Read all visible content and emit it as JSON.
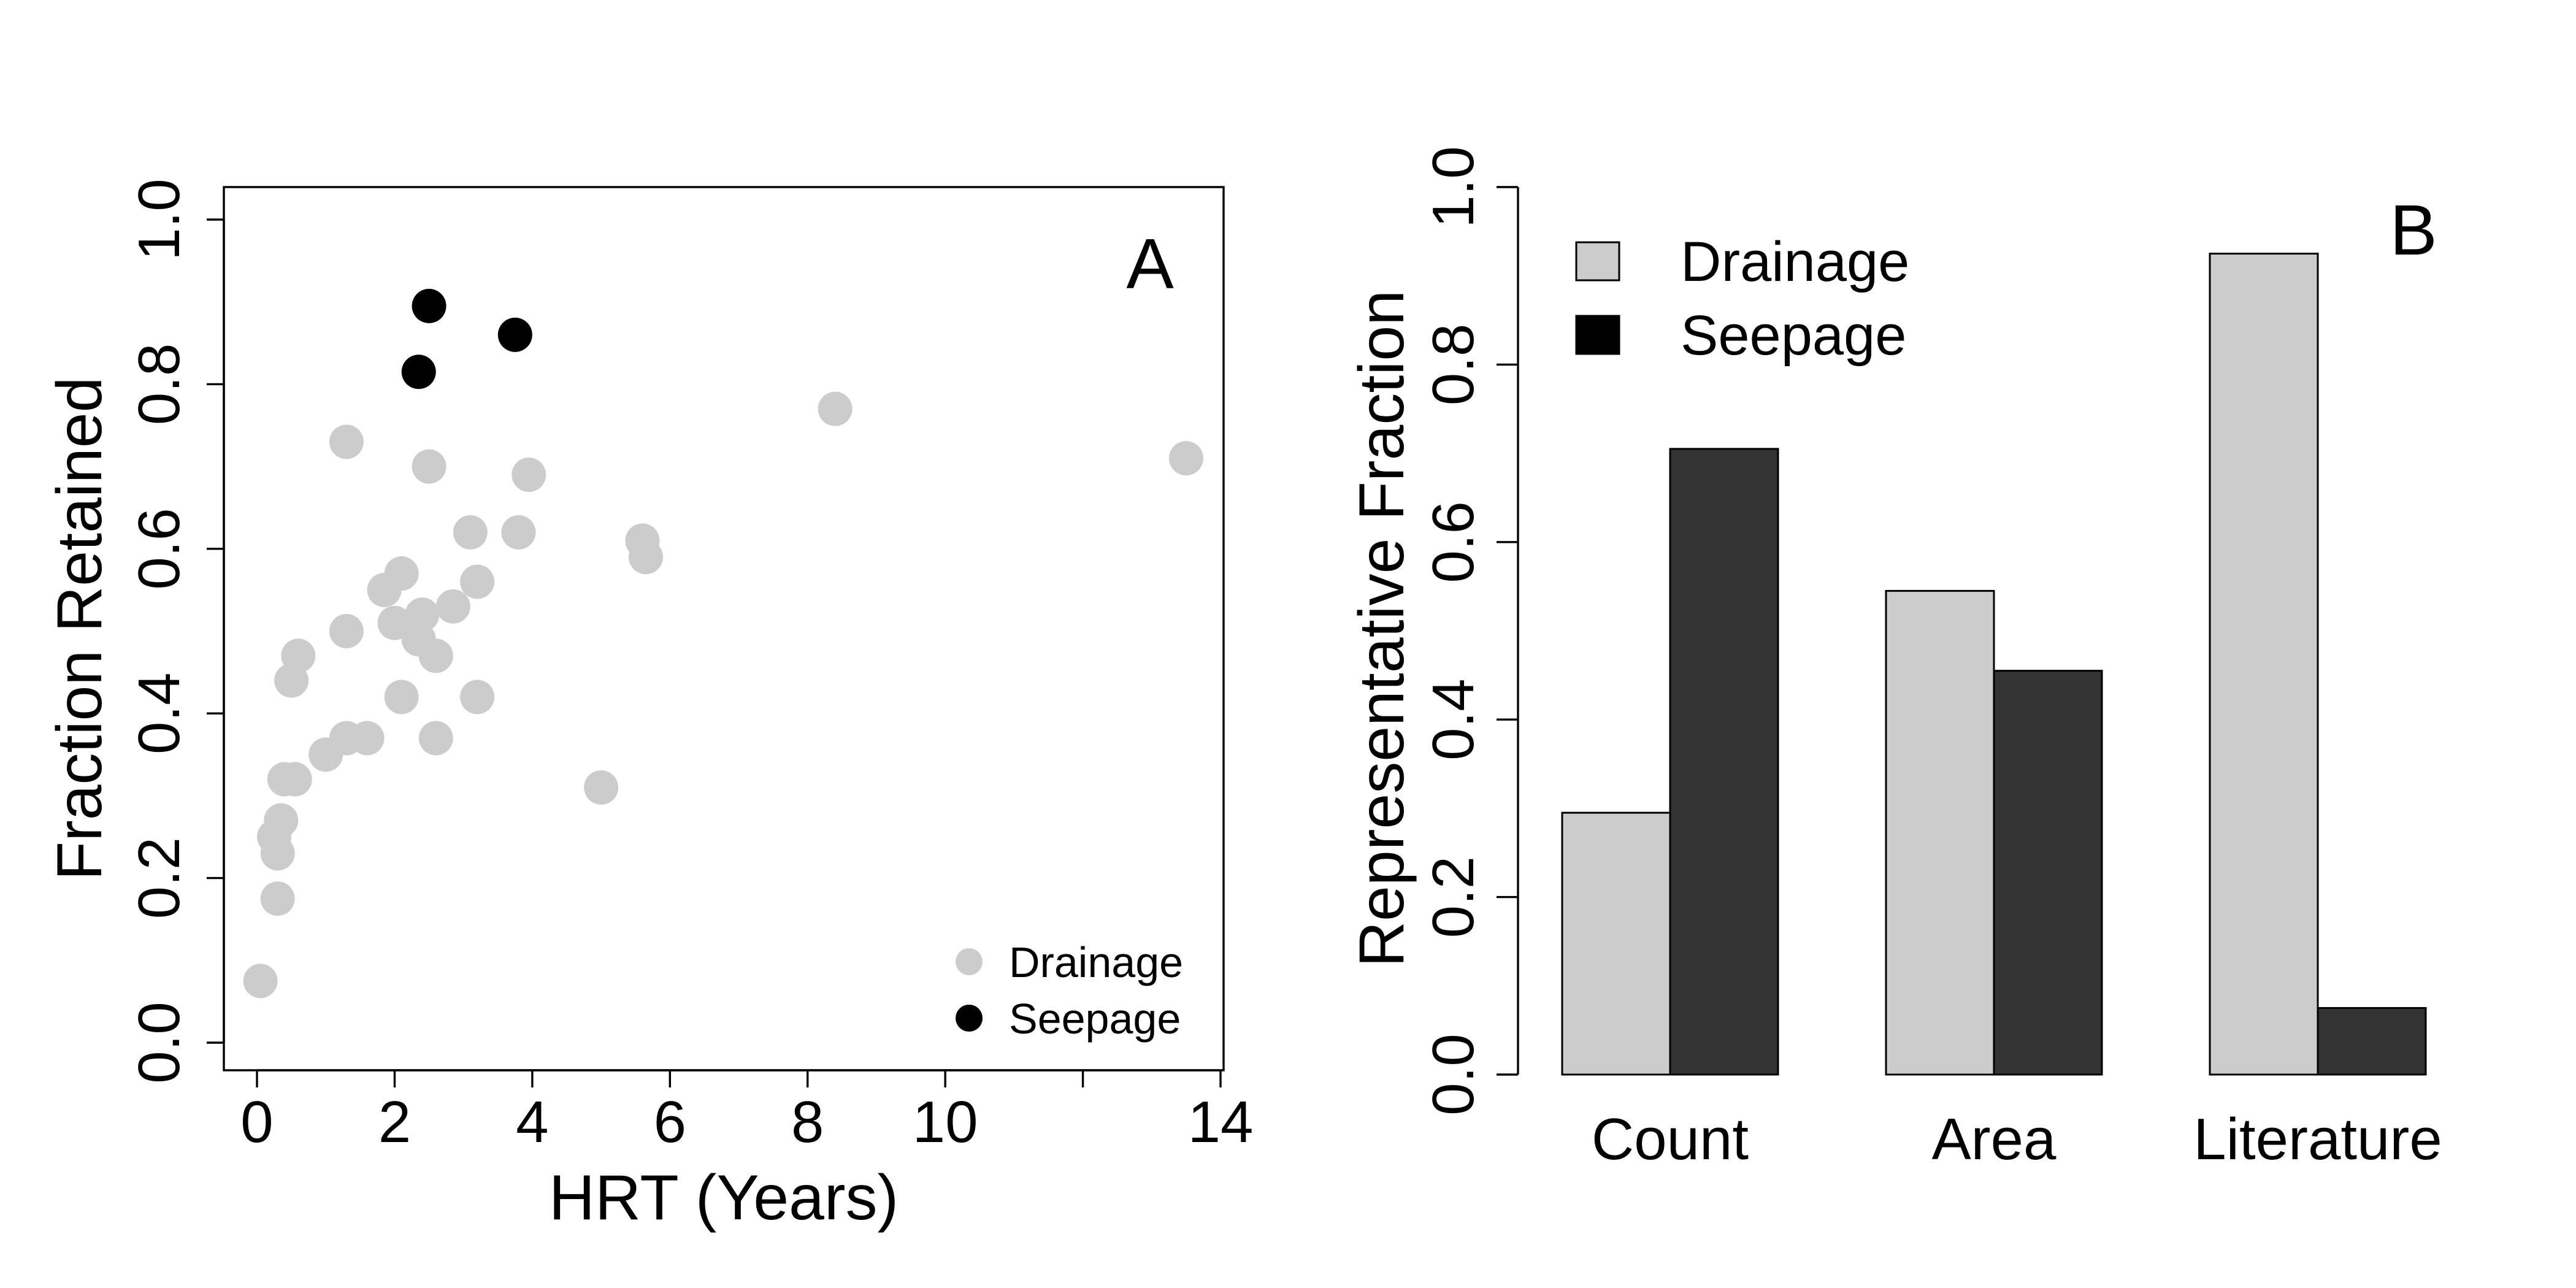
{
  "colors": {
    "drainage": "#cccccc",
    "seepage": "#333333",
    "seepage_point": "#000000"
  },
  "chart_data": [
    {
      "type": "scatter",
      "panel_label": "A",
      "xlabel": "HRT (Years)",
      "ylabel": "Fraction Retained",
      "xlim": [
        0,
        14
      ],
      "ylim": [
        0,
        1
      ],
      "x_ticks": [
        0,
        2,
        4,
        6,
        8,
        10,
        12,
        14
      ],
      "x_tick_labels": [
        "0",
        "2",
        "4",
        "6",
        "8",
        "10",
        "",
        "14"
      ],
      "y_ticks": [
        0,
        0.2,
        0.4,
        0.6,
        0.8,
        1.0
      ],
      "y_tick_labels": [
        "0.0",
        "0.2",
        "0.4",
        "0.6",
        "0.8",
        "1.0"
      ],
      "grid": false,
      "legend_position": "bottom-right",
      "series": [
        {
          "name": "Drainage",
          "color": "#cccccc",
          "points": [
            [
              0.05,
              0.075
            ],
            [
              0.3,
              0.175
            ],
            [
              0.3,
              0.23
            ],
            [
              0.25,
              0.25
            ],
            [
              0.35,
              0.27
            ],
            [
              0.4,
              0.32
            ],
            [
              0.55,
              0.32
            ],
            [
              0.5,
              0.44
            ],
            [
              0.6,
              0.47
            ],
            [
              1.0,
              0.35
            ],
            [
              1.3,
              0.37
            ],
            [
              1.6,
              0.37
            ],
            [
              1.3,
              0.5
            ],
            [
              1.3,
              0.73
            ],
            [
              1.85,
              0.55
            ],
            [
              2.0,
              0.51
            ],
            [
              2.1,
              0.57
            ],
            [
              2.1,
              0.42
            ],
            [
              2.35,
              0.49
            ],
            [
              2.4,
              0.52
            ],
            [
              2.6,
              0.47
            ],
            [
              2.6,
              0.37
            ],
            [
              2.5,
              0.7
            ],
            [
              2.85,
              0.53
            ],
            [
              3.1,
              0.62
            ],
            [
              3.2,
              0.56
            ],
            [
              3.2,
              0.42
            ],
            [
              3.8,
              0.62
            ],
            [
              3.95,
              0.69
            ],
            [
              5.0,
              0.31
            ],
            [
              5.6,
              0.61
            ],
            [
              5.65,
              0.59
            ],
            [
              8.4,
              0.77
            ],
            [
              13.5,
              0.71
            ]
          ]
        },
        {
          "name": "Seepage",
          "color": "#000000",
          "points": [
            [
              2.5,
              0.895
            ],
            [
              3.75,
              0.86
            ],
            [
              2.35,
              0.815
            ]
          ]
        }
      ]
    },
    {
      "type": "bar",
      "panel_label": "B",
      "xlabel": "",
      "ylabel": "Representative Fraction",
      "categories": [
        "Count",
        "Area",
        "Literature"
      ],
      "ylim": [
        0,
        1
      ],
      "y_ticks": [
        0,
        0.2,
        0.4,
        0.6,
        0.8,
        1.0
      ],
      "y_tick_labels": [
        "0.0",
        "0.2",
        "0.4",
        "0.6",
        "0.8",
        "1.0"
      ],
      "grid": false,
      "legend_position": "top-left",
      "series": [
        {
          "name": "Drainage",
          "color": "#cccccc",
          "values": [
            0.295,
            0.545,
            0.925
          ]
        },
        {
          "name": "Seepage",
          "color": "#333333",
          "values": [
            0.705,
            0.455,
            0.075
          ]
        }
      ]
    }
  ]
}
